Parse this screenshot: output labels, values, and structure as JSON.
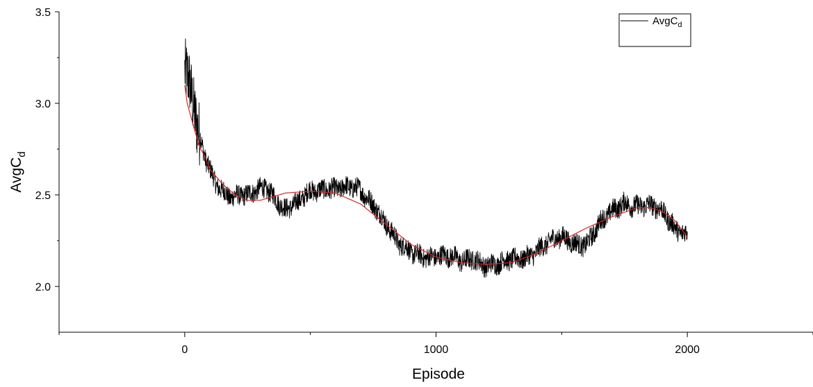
{
  "chart_data": {
    "type": "line",
    "title": "",
    "xlabel": "Episode",
    "ylabel": {
      "base": "AvgC",
      "subscript": "d"
    },
    "xlim": [
      -500,
      2500
    ],
    "ylim": [
      1.75,
      3.5
    ],
    "x_ticks": [
      0,
      1000,
      2000
    ],
    "x_tick_labels": [
      "0",
      "1000",
      "2000"
    ],
    "x_minor_ticks": [
      -500,
      500,
      1500,
      2500
    ],
    "y_ticks": [
      2.0,
      2.5,
      3.0,
      3.5
    ],
    "y_tick_labels": [
      "2.0",
      "2.5",
      "3.0",
      "3.5"
    ],
    "y_minor_ticks": [
      2.25,
      2.75,
      3.25
    ],
    "grid": false,
    "legend": {
      "placement": "top-right",
      "entries": [
        {
          "label_base": "AvgC",
          "label_subscript": "d",
          "color": "#000000"
        }
      ]
    },
    "series": [
      {
        "name": "AvgC_d",
        "color": "#000000",
        "kind": "noisy",
        "x_range": [
          0,
          2000
        ],
        "trend_points": [
          [
            0,
            3.18
          ],
          [
            20,
            3.1
          ],
          [
            50,
            2.85
          ],
          [
            80,
            2.7
          ],
          [
            120,
            2.58
          ],
          [
            180,
            2.5
          ],
          [
            250,
            2.48
          ],
          [
            320,
            2.55
          ],
          [
            360,
            2.5
          ],
          [
            400,
            2.42
          ],
          [
            450,
            2.44
          ],
          [
            500,
            2.52
          ],
          [
            560,
            2.55
          ],
          [
            620,
            2.53
          ],
          [
            700,
            2.52
          ],
          [
            760,
            2.45
          ],
          [
            800,
            2.35
          ],
          [
            850,
            2.22
          ],
          [
            900,
            2.18
          ],
          [
            950,
            2.18
          ],
          [
            1000,
            2.17
          ],
          [
            1050,
            2.15
          ],
          [
            1100,
            2.13
          ],
          [
            1150,
            2.17
          ],
          [
            1200,
            2.12
          ],
          [
            1250,
            2.11
          ],
          [
            1300,
            2.14
          ],
          [
            1400,
            2.2
          ],
          [
            1500,
            2.26
          ],
          [
            1600,
            2.24
          ],
          [
            1650,
            2.33
          ],
          [
            1700,
            2.4
          ],
          [
            1750,
            2.47
          ],
          [
            1800,
            2.45
          ],
          [
            1850,
            2.43
          ],
          [
            1900,
            2.4
          ],
          [
            1950,
            2.33
          ],
          [
            2000,
            2.3
          ]
        ]
      },
      {
        "name": "Fit",
        "color": "#d62728",
        "kind": "smooth",
        "points": [
          [
            0,
            3.1
          ],
          [
            10,
            3.0
          ],
          [
            20,
            2.95
          ],
          [
            40,
            2.85
          ],
          [
            60,
            2.76
          ],
          [
            80,
            2.71
          ],
          [
            100,
            2.64
          ],
          [
            150,
            2.56
          ],
          [
            200,
            2.5
          ],
          [
            250,
            2.47
          ],
          [
            300,
            2.47
          ],
          [
            400,
            2.51
          ],
          [
            500,
            2.52
          ],
          [
            600,
            2.51
          ],
          [
            700,
            2.45
          ],
          [
            800,
            2.34
          ],
          [
            900,
            2.23
          ],
          [
            1000,
            2.16
          ],
          [
            1100,
            2.13
          ],
          [
            1200,
            2.12
          ],
          [
            1300,
            2.13
          ],
          [
            1400,
            2.18
          ],
          [
            1500,
            2.25
          ],
          [
            1600,
            2.32
          ],
          [
            1700,
            2.38
          ],
          [
            1800,
            2.43
          ],
          [
            1850,
            2.43
          ],
          [
            1900,
            2.41
          ],
          [
            1950,
            2.36
          ],
          [
            2000,
            2.27
          ]
        ]
      }
    ]
  }
}
